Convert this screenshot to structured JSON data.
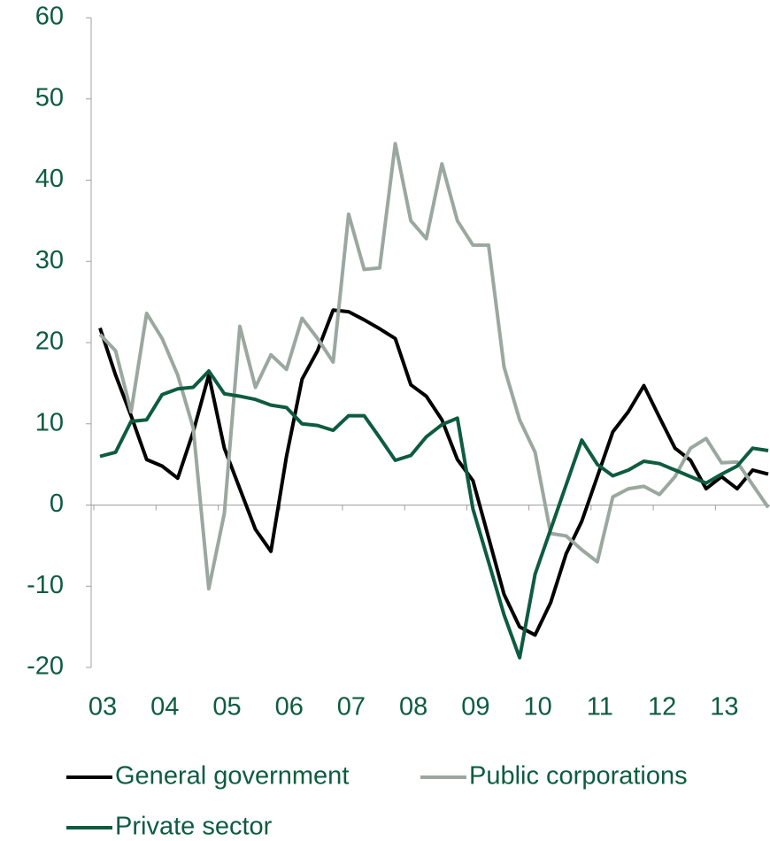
{
  "chart_data": {
    "type": "line",
    "categories": [
      "03",
      null,
      null,
      null,
      "04",
      null,
      null,
      null,
      "05",
      null,
      null,
      null,
      "06",
      null,
      null,
      null,
      "07",
      null,
      null,
      null,
      "08",
      null,
      null,
      null,
      "09",
      null,
      null,
      null,
      "10",
      null,
      null,
      null,
      "11",
      null,
      null,
      null,
      "12",
      null,
      null,
      null,
      "13",
      null,
      null,
      null
    ],
    "series": [
      {
        "name": "General government",
        "color": "#000000",
        "values": [
          21.8,
          16,
          11,
          5.6,
          4.8,
          3.3,
          9,
          16,
          7,
          2,
          -3,
          -5.7,
          6,
          15.5,
          19,
          24,
          23.8,
          22.8,
          21.7,
          20.5,
          14.8,
          13.4,
          10.5,
          5.6,
          3,
          -4,
          -11,
          -15,
          -16,
          -12,
          -6,
          -2,
          3.5,
          9,
          11.5,
          14.7,
          10.8,
          7,
          5.5,
          2,
          3.5,
          2,
          4.3,
          3.8
        ]
      },
      {
        "name": "Public corporations",
        "color": "#9aa8a0",
        "values": [
          21,
          19,
          11.5,
          23.6,
          20.5,
          16,
          9.5,
          -10.3,
          -1,
          22,
          14.5,
          18.5,
          16.7,
          23,
          20.5,
          17.6,
          35.8,
          29,
          29.2,
          44.5,
          35,
          32.8,
          42,
          35,
          32,
          32,
          17,
          10.5,
          6.5,
          -3.5,
          -3.8,
          -5.5,
          -7,
          1,
          2,
          2.3,
          1.3,
          3.5,
          7,
          8.2,
          5.2,
          5.3,
          2.5,
          -0.3
        ]
      },
      {
        "name": "Private sector",
        "color": "#0e5c40",
        "values": [
          6,
          6.5,
          10.3,
          10.5,
          13.6,
          14.3,
          14.5,
          16.5,
          13.7,
          13.4,
          13,
          12.3,
          12,
          10,
          9.8,
          9.2,
          11,
          11,
          8.3,
          5.5,
          6.1,
          8.4,
          9.9,
          10.7,
          -0.5,
          -7,
          -13.5,
          -18.8,
          -8.5,
          -3,
          2.5,
          8,
          5,
          3.6,
          4.3,
          5.4,
          5.1,
          4.3,
          3.5,
          2.7,
          3.8,
          4.8,
          7,
          6.7
        ]
      }
    ],
    "ylim": [
      -20,
      60
    ],
    "yticks": [
      -20,
      -10,
      0,
      10,
      20,
      30,
      40,
      50,
      60
    ],
    "grid": false
  }
}
